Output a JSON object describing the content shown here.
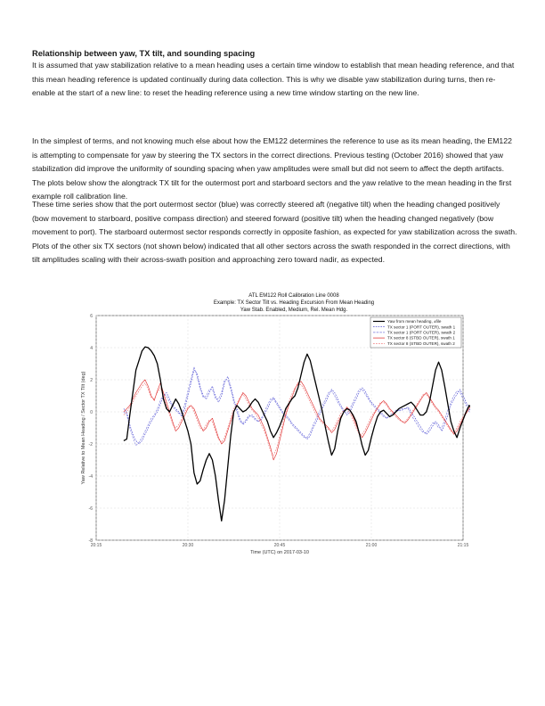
{
  "document": {
    "heading": "Relationship between yaw, TX tilt, and sounding spacing",
    "paragraphs": [
      "It is assumed that yaw stabilization relative to a mean heading uses a certain time window to establish that mean heading reference, and that this mean heading reference is updated continually during data collection.  This is why we disable yaw stabilization during turns, then re-enable at the start of a new line: to reset the heading reference using a new time window starting on the new line.",
      "In the simplest of terms, and not knowing much else about how the EM122 determines the reference to use as its mean heading, the EM122 is attempting to compensate for yaw by steering the TX sectors in the correct directions.  Previous testing (October 2016) showed that yaw stabilization did improve the uniformity of sounding spacing when yaw amplitudes were small but did not seem to affect the depth artifacts.  The plots below show the alongtrack TX tilt for the outermost port and starboard sectors and the yaw relative to the mean heading in the first example roll calibration line.",
      "These time series show that the port outermost sector (blue) was correctly steered aft (negative tilt) when the heading changed positively (bow movement to starboard, positive compass direction) and steered forward (positive tilt) when the heading changed negatively (bow movement to port).  The starboard outermost sector responds correctly in opposite fashion, as expected for yaw stabilization across the swath.  Plots of the other six TX sectors (not shown below) indicated that all other sectors across the swath responded in the correct directions, with tilt amplitudes scaling with their across-swath position and approaching zero toward nadir, as expected."
    ]
  },
  "chart_data": {
    "type": "line",
    "title": "ATL EM122 Roll Calibration Line 0008",
    "subtitle": "Example: TX Sector Tilt vs. Heading Excursion From Mean Heading",
    "subtitle2": "Yaw Stab. Enabled, Medium, Rel. Mean Hdg.",
    "xlabel": "Time (UTC) on 2017-03-10",
    "ylabel": "Yaw Relative to Mean Heading / Sector TX Tilt (deg)",
    "ylim": [
      -8,
      6
    ],
    "xlim": [
      0,
      60
    ],
    "yticks": [
      "6",
      "4",
      "2",
      "0",
      "-2",
      "-4",
      "-6",
      "-8"
    ],
    "xticks": [
      "20:15",
      "20:30",
      "20:45",
      "21:00",
      "21:15"
    ],
    "xtick_values": [
      0,
      15,
      30,
      45,
      60
    ],
    "grid": true,
    "legend_position": "top-right",
    "x_start": 4.5,
    "x_step": 0.5,
    "series": [
      {
        "name": "Yaw from mean heading, ±file",
        "color": "#000000",
        "dash": "",
        "values": [
          -1.8,
          -1.7,
          -0.2,
          1.2,
          2.6,
          3.2,
          3.8,
          4.05,
          4.0,
          3.8,
          3.5,
          3.0,
          2.0,
          0.8,
          0.2,
          0.0,
          0.4,
          0.8,
          0.5,
          0.0,
          -0.6,
          -1.2,
          -2.0,
          -3.8,
          -4.5,
          -4.3,
          -3.6,
          -3.0,
          -2.6,
          -3.0,
          -4.0,
          -5.5,
          -6.8,
          -5.5,
          -3.5,
          -1.5,
          0.0,
          0.4,
          0.2,
          0.0,
          0.1,
          0.3,
          0.6,
          0.8,
          0.6,
          0.2,
          -0.2,
          -0.6,
          -1.2,
          -1.6,
          -1.3,
          -0.9,
          -0.4,
          0.2,
          0.5,
          0.8,
          1.0,
          1.5,
          2.3,
          3.1,
          3.6,
          3.2,
          2.4,
          1.6,
          0.8,
          0.0,
          -1.0,
          -1.9,
          -2.7,
          -2.3,
          -1.2,
          -0.4,
          0.0,
          0.2,
          0.1,
          -0.2,
          -0.6,
          -1.3,
          -2.1,
          -2.7,
          -2.4,
          -1.6,
          -0.9,
          -0.3,
          0.0,
          0.1,
          -0.1,
          -0.3,
          -0.2,
          0.0,
          0.2,
          0.3,
          0.4,
          0.5,
          0.6,
          0.4,
          0.1,
          -0.2,
          -0.2,
          0.0,
          0.6,
          1.6,
          2.6,
          3.1,
          2.6,
          1.6,
          0.5,
          -0.6,
          -1.2,
          -1.6,
          -1.0,
          -0.5,
          0.0,
          0.4,
          0.2,
          -0.5,
          -1.6,
          -2.6,
          -3.1,
          -2.9,
          -2.6,
          -2.3,
          -1.6,
          -1.0,
          -0.5,
          -0.2,
          0.2,
          0.6,
          1.0,
          0.8,
          0.3,
          -0.2,
          -1.0,
          -1.5,
          -0.9
        ]
      },
      {
        "name": "TX sector 1 (PORT OUTER), swath 1",
        "color": "#3333cc",
        "dash": "1.6,1.2",
        "values": [
          0.2,
          0.0,
          -0.8,
          -1.4,
          -1.8,
          -2.0,
          -1.8,
          -1.4,
          -1.0,
          -0.6,
          -0.3,
          0.0,
          0.5,
          1.0,
          1.2,
          0.8,
          0.4,
          0.2,
          0.0,
          -0.3,
          0.2,
          1.0,
          1.8,
          2.6,
          2.4,
          1.6,
          1.0,
          0.8,
          1.2,
          1.6,
          1.0,
          0.6,
          1.0,
          1.8,
          2.2,
          1.6,
          0.8,
          0.2,
          -0.4,
          -0.8,
          -0.6,
          -0.3,
          -0.2,
          -0.4,
          -0.6,
          -0.5,
          -0.2,
          0.2,
          0.6,
          0.9,
          0.6,
          0.3,
          0.0,
          -0.2,
          -0.4,
          -0.7,
          -0.9,
          -1.1,
          -1.3,
          -1.5,
          -1.7,
          -1.5,
          -1.0,
          -0.6,
          -0.2,
          0.2,
          0.6,
          1.0,
          1.4,
          1.2,
          0.8,
          0.4,
          0.1,
          -0.2,
          0.0,
          0.4,
          0.8,
          1.2,
          1.5,
          1.3,
          0.9,
          0.6,
          0.4,
          0.2,
          0.0,
          -0.2,
          -0.4,
          -0.3,
          -0.2,
          0.0,
          0.1,
          0.1,
          0.2,
          0.3,
          0.0,
          -0.3,
          -0.6,
          -0.9,
          -1.2,
          -1.4,
          -1.2,
          -0.9,
          -0.6,
          -0.8,
          -1.2,
          -0.8,
          -0.2,
          0.4,
          0.8,
          1.1,
          1.4,
          1.0,
          0.6,
          0.2,
          -0.2,
          0.2,
          0.8,
          1.4,
          1.7,
          1.5,
          1.3,
          1.6,
          1.4,
          1.0,
          0.6,
          0.2,
          -0.2,
          -0.6,
          -1.0,
          -0.7,
          -0.4,
          0.2,
          0.8,
          1.6,
          2.3,
          1.2
        ]
      },
      {
        "name": "TX sector 1 (PORT OUTER), swath 2",
        "color": "#7777dd",
        "dash": "2.5,1.2",
        "values": [
          0.0,
          -0.2,
          -1.0,
          -1.6,
          -2.1,
          -1.9,
          -1.6,
          -1.2,
          -0.8,
          -0.4,
          -0.2,
          0.2,
          0.7,
          1.1,
          1.0,
          0.6,
          0.3,
          0.1,
          -0.1,
          -0.1,
          0.5,
          1.3,
          2.0,
          2.8,
          2.2,
          1.4,
          0.9,
          1.0,
          1.4,
          1.4,
          0.8,
          0.8,
          1.2,
          2.0,
          2.0,
          1.4,
          0.6,
          0.0,
          -0.6,
          -0.7,
          -0.5,
          -0.2,
          -0.3,
          -0.5,
          -0.6,
          -0.4,
          0.0,
          0.4,
          0.8,
          0.8,
          0.5,
          0.2,
          -0.1,
          -0.3,
          -0.5,
          -0.8,
          -1.0,
          -1.2,
          -1.4,
          -1.6,
          -1.6,
          -1.3,
          -0.8,
          -0.4,
          0.0,
          0.4,
          0.8,
          1.2,
          1.3,
          1.0,
          0.6,
          0.3,
          0.0,
          -0.1,
          0.2,
          0.6,
          1.0,
          1.4,
          1.4,
          1.1,
          0.8,
          0.5,
          0.3,
          0.1,
          -0.1,
          -0.3,
          -0.4,
          -0.2,
          -0.1,
          0.1,
          0.1,
          0.2,
          0.2,
          0.2,
          -0.2,
          -0.5,
          -0.8,
          -1.1,
          -1.3,
          -1.3,
          -1.0,
          -0.7,
          -0.7,
          -1.0,
          -1.0,
          -0.5,
          0.1,
          0.6,
          1.0,
          1.3,
          1.2,
          0.8,
          0.4,
          0.0,
          0.0,
          0.5,
          1.1,
          1.6,
          1.6,
          1.4,
          1.4,
          1.5,
          1.2,
          0.8,
          0.4,
          0.0,
          -0.4,
          -0.8,
          -0.9,
          -0.6,
          -0.1,
          0.5,
          1.2,
          2.0,
          1.8,
          0.8
        ]
      },
      {
        "name": "TX sector 8 (STBD OUTER), swath 1",
        "color": "#dd2222",
        "dash": "",
        "values": [
          0.0,
          0.2,
          0.4,
          0.8,
          1.2,
          1.5,
          1.8,
          2.0,
          1.6,
          1.0,
          0.7,
          1.3,
          1.8,
          1.2,
          0.6,
          0.0,
          -0.6,
          -1.2,
          -1.0,
          -0.6,
          -0.2,
          0.2,
          0.4,
          0.2,
          -0.3,
          -0.8,
          -1.2,
          -1.0,
          -0.6,
          -0.4,
          -1.0,
          -1.6,
          -2.0,
          -1.8,
          -1.2,
          -0.6,
          0.0,
          0.4,
          0.8,
          1.2,
          1.0,
          0.6,
          0.2,
          0.0,
          -0.2,
          -0.6,
          -1.0,
          -1.6,
          -2.2,
          -3.0,
          -2.6,
          -1.8,
          -1.0,
          -0.2,
          0.4,
          0.9,
          1.4,
          1.8,
          1.9,
          1.6,
          1.2,
          0.8,
          0.4,
          0.0,
          -0.4,
          -0.6,
          -0.8,
          -1.0,
          -1.3,
          -1.1,
          -0.7,
          -0.3,
          0.0,
          0.3,
          0.1,
          -0.3,
          -0.8,
          -1.3,
          -1.6,
          -1.3,
          -0.9,
          -0.5,
          -0.1,
          0.2,
          0.5,
          0.7,
          0.5,
          0.2,
          0.0,
          -0.2,
          -0.4,
          -0.6,
          -0.7,
          -0.5,
          -0.2,
          0.1,
          0.4,
          0.7,
          1.0,
          1.2,
          0.9,
          0.6,
          0.3,
          0.1,
          -0.2,
          -0.5,
          -0.8,
          -1.1,
          -1.4,
          -1.2,
          -0.8,
          -0.4,
          -0.1,
          0.2,
          0.5,
          0.3,
          -0.2,
          -0.6,
          -1.0,
          -0.8,
          -0.4,
          0.2,
          0.8,
          1.5,
          2.0,
          1.6,
          1.0,
          0.6,
          1.2,
          1.8,
          1.2,
          0.4,
          -0.4,
          -1.2,
          -2.2,
          -1.4
        ]
      },
      {
        "name": "TX sector 8 (STBD OUTER), swath 2",
        "color": "#ee6666",
        "dash": "1.8,1.2",
        "values": [
          -0.2,
          0.0,
          0.3,
          0.6,
          1.0,
          1.3,
          1.6,
          1.8,
          1.4,
          0.9,
          0.8,
          1.2,
          1.5,
          1.0,
          0.4,
          -0.2,
          -0.8,
          -1.0,
          -0.8,
          -0.4,
          0.0,
          0.3,
          0.4,
          0.0,
          -0.5,
          -1.0,
          -1.1,
          -0.8,
          -0.5,
          -0.6,
          -1.2,
          -1.7,
          -1.9,
          -1.6,
          -1.0,
          -0.4,
          0.2,
          0.5,
          0.9,
          1.1,
          0.8,
          0.4,
          0.1,
          -0.1,
          -0.4,
          -0.8,
          -1.2,
          -1.8,
          -2.4,
          -2.7,
          -2.3,
          -1.5,
          -0.7,
          0.0,
          0.6,
          1.1,
          1.5,
          1.7,
          1.7,
          1.4,
          1.0,
          0.6,
          0.2,
          -0.2,
          -0.5,
          -0.7,
          -0.9,
          -1.1,
          -1.2,
          -0.9,
          -0.5,
          -0.1,
          0.1,
          0.2,
          -0.1,
          -0.5,
          -1.0,
          -1.4,
          -1.4,
          -1.1,
          -0.7,
          -0.3,
          0.0,
          0.3,
          0.6,
          0.6,
          0.4,
          0.1,
          -0.1,
          -0.3,
          -0.5,
          -0.6,
          -0.6,
          -0.4,
          -0.1,
          0.2,
          0.5,
          0.8,
          1.1,
          1.1,
          0.8,
          0.5,
          0.2,
          0.0,
          -0.3,
          -0.6,
          -0.9,
          -1.2,
          -1.3,
          -1.0,
          -0.6,
          -0.3,
          0.0,
          0.3,
          0.4,
          0.1,
          -0.4,
          -0.8,
          -0.9,
          -0.6,
          -0.1,
          0.5,
          1.1,
          1.7,
          1.8,
          1.3,
          0.8,
          0.9,
          1.5,
          1.5,
          0.8,
          0.0,
          -0.8,
          -1.7,
          -1.9,
          -1.0
        ]
      }
    ]
  }
}
